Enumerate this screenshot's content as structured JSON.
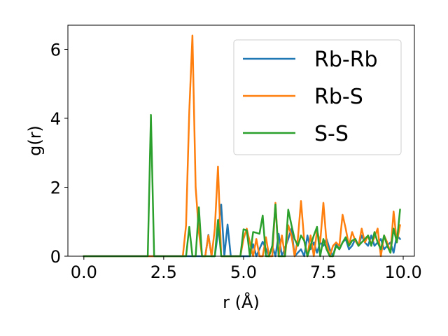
{
  "chart_data": {
    "type": "line",
    "xlabel": "r (Å)",
    "ylabel": "g(r)",
    "xlim": [
      -0.5,
      10.35
    ],
    "ylim": [
      0,
      6.7
    ],
    "xticks": [
      0.0,
      2.5,
      5.0,
      7.5,
      10.0
    ],
    "xtick_labels": [
      "0.0",
      "2.5",
      "5.0",
      "7.5",
      "10.0"
    ],
    "yticks": [
      0,
      2,
      4,
      6
    ],
    "ytick_labels": [
      "0",
      "2",
      "4",
      "6"
    ],
    "grid": false,
    "legend_position": "top-right",
    "series": [
      {
        "name": "Rb-Rb",
        "color": "#1f77b4",
        "x": [
          0.0,
          3.8,
          3.9,
          4.0,
          4.1,
          4.2,
          4.3,
          4.4,
          4.5,
          4.6,
          4.7,
          4.8,
          5.0,
          5.2,
          5.3,
          5.4,
          5.6,
          5.8,
          5.9,
          6.0,
          6.1,
          6.2,
          6.4,
          6.5,
          6.6,
          6.8,
          6.9,
          7.0,
          7.1,
          7.2,
          7.3,
          7.4,
          7.5,
          7.6,
          7.7,
          7.8,
          7.9,
          8.0,
          8.1,
          8.2,
          8.3,
          8.4,
          8.5,
          8.6,
          8.7,
          8.8,
          8.9,
          9.0,
          9.1,
          9.2,
          9.3,
          9.4,
          9.5,
          9.6,
          9.7,
          9.8,
          9.9
        ],
        "y": [
          0.0,
          0.0,
          0.62,
          0.0,
          0.0,
          0.68,
          1.5,
          0.0,
          0.92,
          0.0,
          0.0,
          0.0,
          0.0,
          0.0,
          0.35,
          0.0,
          0.42,
          0.0,
          0.3,
          0.0,
          0.65,
          0.0,
          0.5,
          0.8,
          0.0,
          0.2,
          0.0,
          0.6,
          0.2,
          0.4,
          0.1,
          0.4,
          0.3,
          0.5,
          0.2,
          0.0,
          0.35,
          0.2,
          0.4,
          0.5,
          0.2,
          0.3,
          0.5,
          0.3,
          0.6,
          0.4,
          0.3,
          0.6,
          0.3,
          0.4,
          0.5,
          0.2,
          0.3,
          0.4,
          0.1,
          0.6,
          0.5
        ]
      },
      {
        "name": "Rb-S",
        "color": "#ff7f0e",
        "x": [
          0.0,
          3.1,
          3.2,
          3.3,
          3.4,
          3.5,
          3.6,
          3.7,
          3.8,
          3.9,
          4.0,
          4.1,
          4.2,
          4.3,
          4.4,
          4.5,
          4.6,
          4.7,
          4.8,
          4.9,
          5.0,
          5.1,
          5.2,
          5.3,
          5.4,
          5.5,
          5.6,
          5.7,
          5.8,
          5.9,
          6.0,
          6.1,
          6.2,
          6.3,
          6.4,
          6.5,
          6.6,
          6.7,
          6.8,
          6.9,
          7.0,
          7.1,
          7.2,
          7.3,
          7.4,
          7.5,
          7.6,
          7.7,
          7.8,
          7.9,
          8.0,
          8.1,
          8.2,
          8.3,
          8.4,
          8.5,
          8.6,
          8.7,
          8.8,
          8.9,
          9.0,
          9.1,
          9.2,
          9.3,
          9.4,
          9.5,
          9.6,
          9.7,
          9.8,
          9.9
        ],
        "y": [
          0.0,
          0.0,
          0.9,
          4.2,
          6.4,
          2.0,
          0.7,
          0.0,
          0.0,
          0.6,
          0.0,
          0.8,
          2.6,
          0.0,
          0.0,
          0.0,
          0.0,
          0.0,
          0.0,
          0.0,
          0.5,
          0.8,
          0.4,
          0.0,
          0.5,
          0.0,
          0.0,
          0.55,
          0.0,
          0.0,
          1.55,
          0.0,
          0.6,
          0.0,
          0.9,
          0.6,
          0.0,
          0.5,
          1.6,
          0.45,
          0.0,
          0.6,
          0.0,
          0.75,
          0.4,
          1.55,
          0.4,
          0.0,
          0.3,
          0.4,
          0.3,
          1.2,
          0.8,
          0.3,
          0.7,
          0.45,
          0.3,
          0.8,
          0.4,
          0.6,
          0.35,
          0.55,
          0.8,
          0.0,
          0.6,
          0.4,
          0.1,
          1.3,
          0.4,
          0.9
        ]
      },
      {
        "name": "S-S",
        "color": "#2ca02c",
        "x": [
          0.0,
          2.0,
          2.1,
          2.2,
          2.3,
          3.2,
          3.3,
          3.4,
          3.5,
          3.6,
          3.7,
          3.8,
          3.9,
          4.0,
          4.1,
          4.2,
          4.3,
          4.4,
          4.5,
          4.6,
          4.7,
          4.8,
          4.9,
          5.0,
          5.1,
          5.2,
          5.3,
          5.4,
          5.5,
          5.6,
          5.7,
          5.8,
          5.9,
          6.0,
          6.1,
          6.2,
          6.3,
          6.4,
          6.5,
          6.6,
          6.7,
          6.8,
          6.9,
          7.0,
          7.1,
          7.2,
          7.3,
          7.4,
          7.5,
          7.6,
          7.7,
          7.8,
          7.9,
          8.0,
          8.1,
          8.2,
          8.3,
          8.4,
          8.5,
          8.6,
          8.7,
          8.8,
          8.9,
          9.0,
          9.1,
          9.2,
          9.3,
          9.4,
          9.5,
          9.6,
          9.7,
          9.8,
          9.9
        ],
        "y": [
          0.0,
          0.0,
          4.1,
          0.0,
          0.0,
          0.0,
          0.85,
          0.0,
          0.0,
          1.42,
          0.0,
          0.0,
          0.0,
          0.0,
          0.0,
          1.05,
          0.0,
          0.0,
          0.0,
          0.0,
          0.0,
          0.0,
          0.0,
          0.78,
          0.75,
          0.0,
          0.7,
          0.68,
          0.65,
          1.18,
          0.0,
          0.0,
          0.3,
          1.5,
          0.0,
          0.0,
          0.0,
          1.35,
          0.9,
          0.5,
          0.3,
          0.6,
          0.45,
          0.0,
          0.3,
          0.6,
          0.85,
          0.0,
          0.5,
          0.2,
          0.0,
          0.0,
          0.3,
          0.2,
          0.4,
          0.55,
          0.3,
          0.45,
          0.5,
          0.3,
          0.4,
          0.5,
          0.6,
          0.3,
          0.7,
          0.4,
          0.2,
          0.6,
          0.3,
          0.1,
          0.8,
          0.4,
          1.35
        ]
      }
    ]
  }
}
